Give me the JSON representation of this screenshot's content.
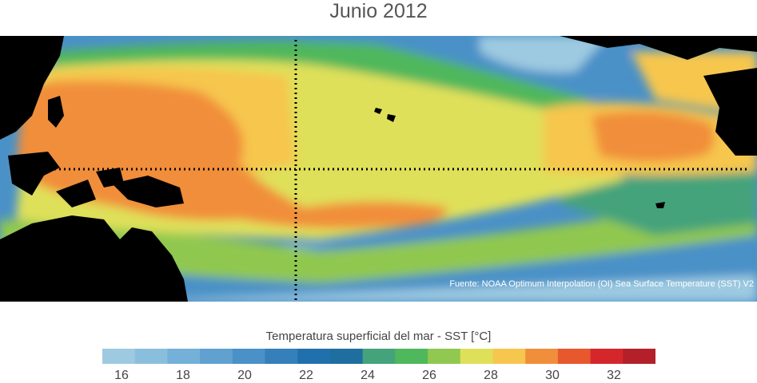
{
  "title": "Junio 2012",
  "source": "Fuente: NOAA Optimum Interpolation (OI) Sea Surface Temperature (SST) V2",
  "colorbar": {
    "title": "Temperatura superficial del mar - SST  [°C]",
    "colors": [
      "#9ecae1",
      "#8abedd",
      "#75b0d8",
      "#60a1d0",
      "#4a91c7",
      "#357fbb",
      "#2170ae",
      "#1f6ea0",
      "#45a37c",
      "#4fb75c",
      "#90c850",
      "#dfe05a",
      "#f6c64e",
      "#f18e3b",
      "#e8582e",
      "#d5262c",
      "#b3202a"
    ],
    "tick_labels": [
      "16",
      "18",
      "20",
      "22",
      "24",
      "26",
      "28",
      "30",
      "32"
    ]
  },
  "map_colors": {
    "land": "#000000",
    "deep_blue": "#2170ae",
    "mid_blue": "#4a91c7",
    "light_blue": "#9ecae1",
    "teal": "#45a37c",
    "green": "#4fb75c",
    "light_green": "#90c850",
    "yellow": "#dfe05a",
    "gold": "#f6c64e",
    "orange": "#f18e3b"
  },
  "reference_lines": [
    "equator",
    "dateline"
  ]
}
